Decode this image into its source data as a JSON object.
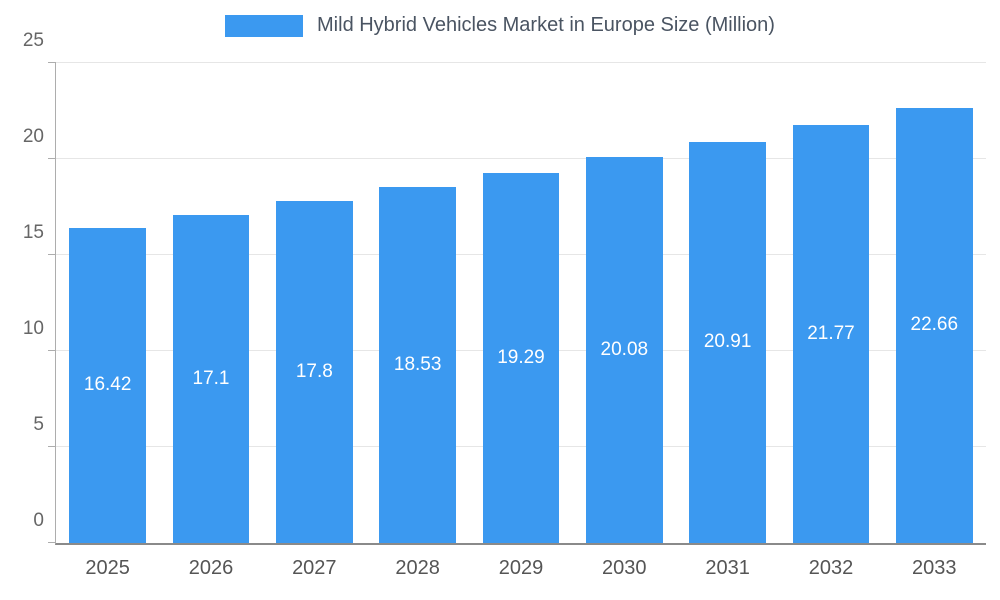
{
  "chart_data": {
    "type": "bar",
    "title": "Mild Hybrid Vehicles Market in Europe Size (Million)",
    "categories": [
      "2025",
      "2026",
      "2027",
      "2028",
      "2029",
      "2030",
      "2031",
      "2032",
      "2033"
    ],
    "values": [
      16.42,
      17.1,
      17.8,
      18.53,
      19.29,
      20.08,
      20.91,
      21.77,
      22.66
    ],
    "value_labels": [
      "16.42",
      "17.1",
      "17.8",
      "18.53",
      "19.29",
      "20.08",
      "20.91",
      "21.77",
      "22.66"
    ],
    "xlabel": "",
    "ylabel": "",
    "ylim": [
      0,
      25
    ],
    "ytick_step": 5,
    "ytick_labels": [
      "0",
      "5",
      "10",
      "15",
      "20",
      "25"
    ],
    "grid": "horizontal",
    "legend_position": "top-center",
    "colors": {
      "bar": "#3b99f0",
      "title_text": "#4a5462",
      "axis": "#8a8a8a",
      "grid": "#e6e6e6",
      "tick_label": "#666666",
      "x_label": "#555555",
      "value_label": "#ffffff",
      "background": "#ffffff"
    }
  }
}
